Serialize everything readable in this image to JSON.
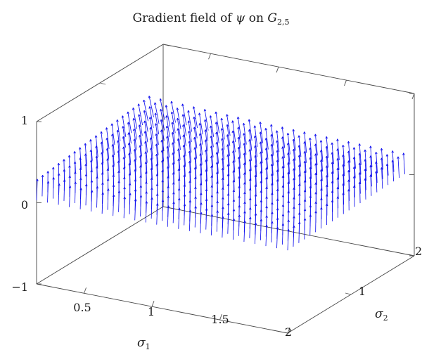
{
  "chart_data": {
    "type": "quiver3d",
    "title_prefix": "Gradient field of",
    "title_psi": "ψ",
    "title_on": "on",
    "title_G": "G",
    "title_G_sub": "2,5",
    "xlabel": "σ",
    "xlabel_sub": "1",
    "ylabel": "σ",
    "ylabel_sub": "2",
    "xlim": [
      0.15,
      2.0
    ],
    "ylim": [
      0,
      2
    ],
    "zlim": [
      -1,
      1
    ],
    "xticks": [
      0.5,
      1,
      1.5,
      2
    ],
    "xtick_labels": [
      "0.5",
      "1",
      "1.5",
      "2"
    ],
    "yticks": [
      1,
      2
    ],
    "ytick_labels": [
      "1",
      "2"
    ],
    "zticks": [
      -1,
      0,
      1
    ],
    "ztick_labels": [
      "−1",
      "0",
      "1"
    ],
    "grid_x": [
      0.15,
      2.0,
      24
    ],
    "grid_y": [
      0.0,
      1.85,
      22
    ],
    "color": "#1212ee"
  }
}
